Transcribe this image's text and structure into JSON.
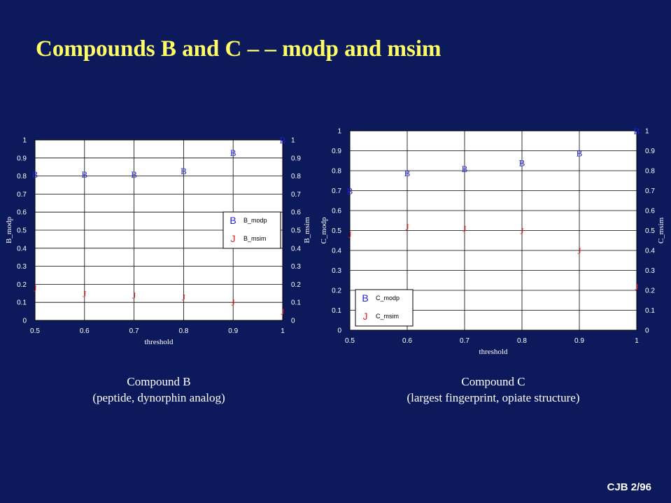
{
  "slide": {
    "title": "Compounds B and C – – modp and msim",
    "footer": "CJB 2/96"
  },
  "colors": {
    "background": "#0c1a5c",
    "title": "#ffff66",
    "plot_area": "#ffffff",
    "modp_marker": "#2020e0",
    "msim_marker": "#e02020",
    "text": "#ffffff"
  },
  "captions": [
    {
      "line1": "Compound B",
      "line2": "(peptide, dynorphin analog)"
    },
    {
      "line1": "Compound C",
      "line2": "(largest fingerprint, opiate structure)"
    }
  ],
  "chart_data": [
    {
      "type": "scatter",
      "xlabel": "threshold",
      "ylabel_left": "B_modp",
      "ylabel_right": "B_msim",
      "xlim": [
        0.5,
        1
      ],
      "ylim": [
        0,
        1
      ],
      "xticks": [
        "0.5",
        "0.6",
        "0.7",
        "0.8",
        "0.9",
        "1"
      ],
      "yticks": [
        "0",
        "0.1",
        "0.2",
        "0.3",
        "0.4",
        "0.5",
        "0.6",
        "0.7",
        "0.8",
        "0.9",
        "1"
      ],
      "grid": true,
      "legend_position": "right-middle",
      "series": [
        {
          "name": "B_modp",
          "marker": "B",
          "x": [
            0.5,
            0.6,
            0.7,
            0.8,
            0.9,
            1.0
          ],
          "y": [
            0.81,
            0.81,
            0.81,
            0.83,
            0.93,
            1.0
          ]
        },
        {
          "name": "B_msim",
          "marker": "J",
          "x": [
            0.5,
            0.6,
            0.7,
            0.8,
            0.9,
            1.0
          ],
          "y": [
            0.18,
            0.15,
            0.14,
            0.13,
            0.1,
            0.05
          ]
        }
      ]
    },
    {
      "type": "scatter",
      "xlabel": "threshold",
      "ylabel_left": "C_modp",
      "ylabel_right": "C_msim",
      "xlim": [
        0.5,
        1
      ],
      "ylim": [
        0,
        1
      ],
      "xticks": [
        "0.5",
        "0.6",
        "0.7",
        "0.8",
        "0.9",
        "1"
      ],
      "yticks": [
        "0",
        "0.1",
        "0.2",
        "0.3",
        "0.4",
        "0.5",
        "0.6",
        "0.7",
        "0.8",
        "0.9",
        "1"
      ],
      "grid": true,
      "legend_position": "bottom-left",
      "series": [
        {
          "name": "C_modp",
          "marker": "B",
          "x": [
            0.5,
            0.6,
            0.7,
            0.8,
            0.9,
            1.0
          ],
          "y": [
            0.7,
            0.79,
            0.81,
            0.84,
            0.89,
            1.0
          ]
        },
        {
          "name": "C_msim",
          "marker": "J",
          "x": [
            0.5,
            0.6,
            0.7,
            0.8,
            0.9,
            1.0
          ],
          "y": [
            0.48,
            0.52,
            0.51,
            0.5,
            0.4,
            0.22
          ]
        }
      ]
    }
  ]
}
